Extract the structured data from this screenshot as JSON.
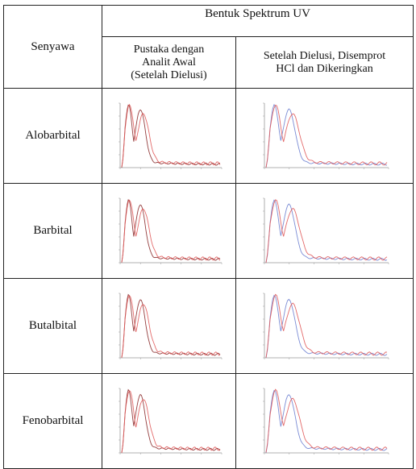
{
  "table": {
    "header_main": "Bentuk Spektrum UV",
    "header_compound": "Senyawa",
    "header_col1": [
      "Pustaka dengan",
      "Analit Awal",
      "(Setelah Dielusi)"
    ],
    "header_col2": [
      "Setelah Dielusi, Disemprot",
      "HCl dan Dikeringkan"
    ],
    "rows": [
      {
        "name": "Alobarbital"
      },
      {
        "name": "Barbital"
      },
      {
        "name": "Butalbital"
      },
      {
        "name": "Fenobarbital"
      }
    ]
  },
  "colors": {
    "red": "#e05a5a",
    "dark_red": "#8a2b2b",
    "blue": "#6d7fd0",
    "axis": "#999999",
    "border": "#222222"
  }
}
